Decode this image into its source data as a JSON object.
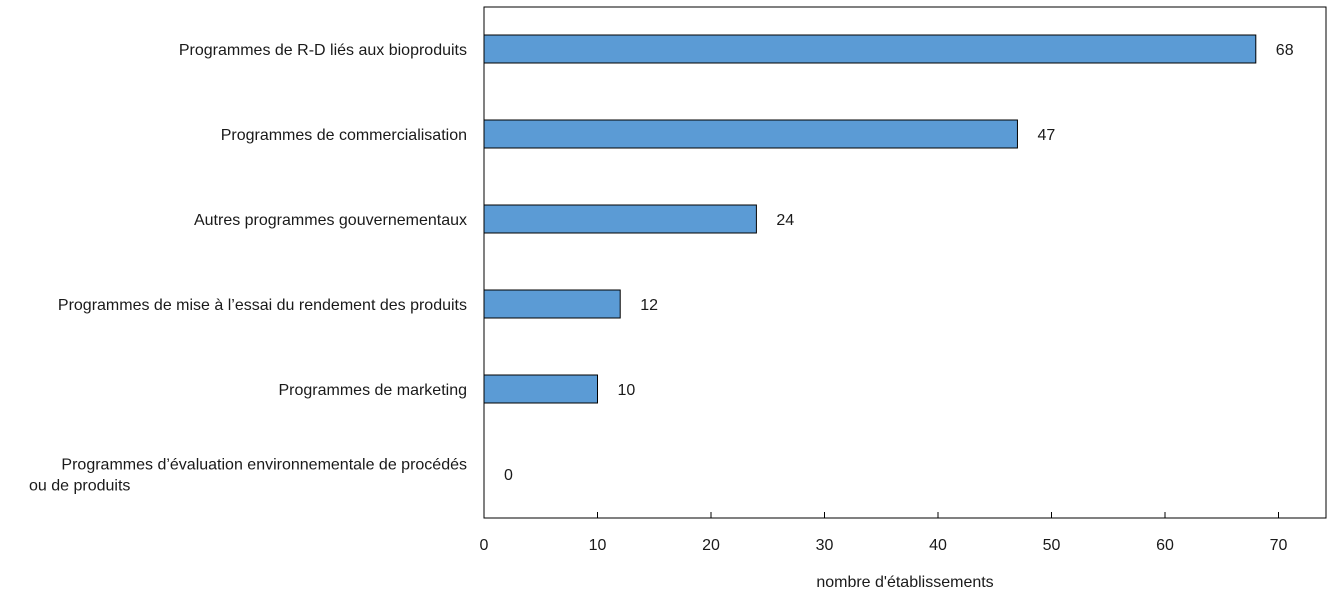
{
  "chart_data": {
    "type": "bar",
    "orientation": "horizontal",
    "categories": [
      "Programmes de R-D liés aux bioproduits",
      "Programmes de commercialisation",
      "Autres programmes gouvernementaux",
      "Programmes de mise à l’essai du rendement des produits",
      "Programmes de marketing",
      "Programmes d’évaluation environnementale de procédés ou de produits"
    ],
    "category_lines": [
      [
        "Programmes de R-D liés aux bioproduits"
      ],
      [
        "Programmes de commercialisation"
      ],
      [
        "Autres programmes gouvernementaux"
      ],
      [
        "Programmes de mise à l’essai du rendement des produits"
      ],
      [
        "Programmes de marketing"
      ],
      [
        "Programmes d’évaluation environnementale de procédés",
        "ou de produits"
      ]
    ],
    "values": [
      68,
      47,
      24,
      12,
      10,
      0
    ],
    "xlabel": "nombre d'établissements",
    "ylabel": "",
    "xlim": [
      0,
      75
    ],
    "xticks": [
      0,
      10,
      20,
      30,
      40,
      50,
      60,
      70
    ],
    "data_labels": true,
    "grid": false,
    "legend": "none",
    "colors": {
      "bar_fill": "#5b9bd5",
      "bar_stroke": "#000000",
      "axis": "#000000"
    }
  }
}
